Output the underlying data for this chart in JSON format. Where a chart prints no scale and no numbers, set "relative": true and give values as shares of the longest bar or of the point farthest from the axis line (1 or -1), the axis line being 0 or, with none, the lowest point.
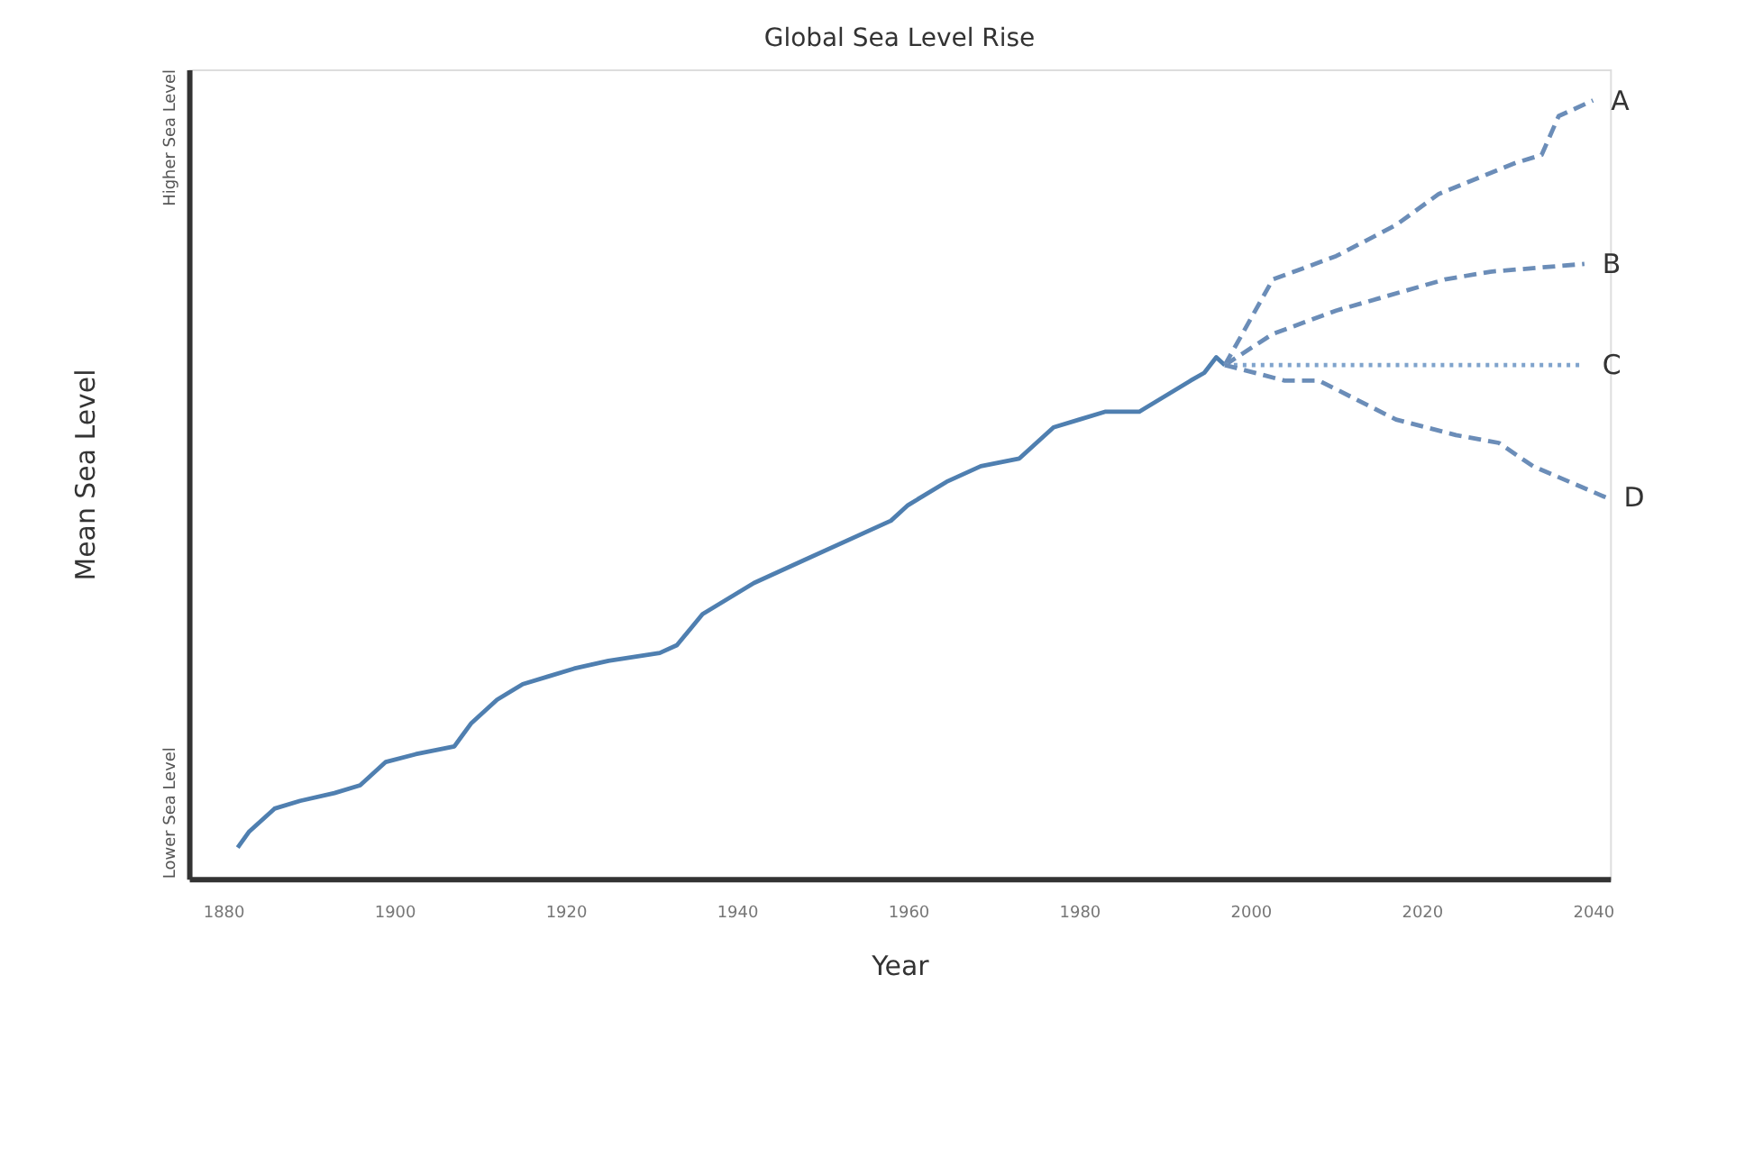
{
  "chart_data": {
    "type": "line",
    "title": "Global Sea Level Rise",
    "xlabel": "Year",
    "ylabel": "Mean Sea Level",
    "relative": true,
    "xlim": [
      1876,
      2042
    ],
    "xticks": [
      1880,
      1900,
      1920,
      1940,
      1960,
      1980,
      2000,
      2020,
      2040
    ],
    "marker": "none",
    "annotations": [
      "Higher Sea Level",
      "Lower Sea Level"
    ],
    "series": [
      {
        "color": "#4f7fb0",
        "line_style": "solid",
        "x": [
          1881.7,
          1883,
          1886,
          1889,
          1893,
          1896,
          1899,
          1902.5,
          1907,
          1909,
          1912,
          1915,
          1918,
          1921,
          1925,
          1931,
          1933,
          1936,
          1939,
          1942,
          1948,
          1958,
          1960,
          1964.5,
          1968.5,
          1973,
          1975,
          1977,
          1980,
          1983,
          1987,
          1993,
          1994.6,
          1996,
          1997
        ],
        "values": [
          0.04,
          0.06,
          0.09,
          0.1,
          0.11,
          0.12,
          0.15,
          0.16,
          0.17,
          0.2,
          0.23,
          0.25,
          0.26,
          0.27,
          0.28,
          0.29,
          0.3,
          0.34,
          0.36,
          0.38,
          0.41,
          0.46,
          0.48,
          0.51,
          0.53,
          0.54,
          0.56,
          0.58,
          0.59,
          0.6,
          0.6,
          0.64,
          0.65,
          0.67,
          0.66
        ]
      },
      {
        "name": "A",
        "color": "#6b8db8",
        "line_style": "dashed",
        "x": [
          1997,
          2002.6,
          2010,
          2017,
          2022,
          2031,
          2034,
          2036,
          2040
        ],
        "values": [
          0.66,
          0.77,
          0.8,
          0.84,
          0.88,
          0.92,
          0.93,
          0.98,
          1.0
        ]
      },
      {
        "name": "B",
        "color": "#6b8db8",
        "line_style": "dashed",
        "x": [
          1997,
          2002.6,
          2010,
          2022.7,
          2028,
          2039
        ],
        "values": [
          0.66,
          0.7,
          0.73,
          0.77,
          0.78,
          0.79
        ]
      },
      {
        "name": "C",
        "color": "#7fa3cc",
        "line_style": "dotted",
        "x": [
          1997,
          2000,
          2039
        ],
        "values": [
          0.66,
          0.66,
          0.66
        ]
      },
      {
        "name": "D",
        "color": "#6b8db8",
        "line_style": "dashed",
        "x": [
          1997,
          2004,
          2008,
          2017,
          2024,
          2029,
          2033,
          2041.5
        ],
        "values": [
          0.66,
          0.64,
          0.64,
          0.59,
          0.57,
          0.56,
          0.53,
          0.49
        ]
      }
    ]
  }
}
